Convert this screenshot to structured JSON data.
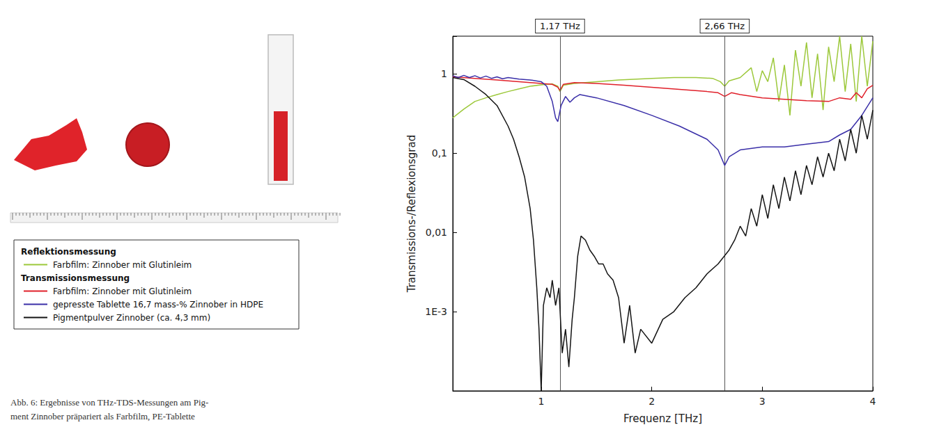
{
  "chart_data": {
    "type": "line",
    "x_label": "Frequenz [THz]",
    "y_label": "Transmissions-/Reflexionsgrad",
    "log": "y",
    "grid": false,
    "legend": "left",
    "xlim": [
      0.2,
      4
    ],
    "xticks": [
      1,
      2,
      3,
      4
    ],
    "ylim": [
      0.0001,
      3
    ],
    "yticks": [
      {
        "value": 0.001,
        "label": "1E-3"
      },
      {
        "value": 0.01,
        "label": "0,01"
      },
      {
        "value": 0.1,
        "label": "0,1"
      },
      1
    ],
    "annotations": [
      {
        "x": 1.17,
        "label": "1,17 THz"
      },
      {
        "x": 2.66,
        "label": "2,66 THz"
      }
    ],
    "series": [
      {
        "name": "Farbfilm: Zinnober mit Glutinleim",
        "group": "Reflektionsmessung",
        "color": "#9cc83a",
        "x": [
          0.2,
          0.3,
          0.4,
          0.5,
          0.6,
          0.7,
          0.8,
          0.9,
          1.0,
          1.1,
          1.15,
          1.17,
          1.2,
          1.3,
          1.5,
          1.7,
          2.0,
          2.2,
          2.4,
          2.55,
          2.62,
          2.66,
          2.7,
          2.8,
          2.9,
          2.95,
          3.0,
          3.05,
          3.1,
          3.15,
          3.2,
          3.25,
          3.3,
          3.35,
          3.4,
          3.45,
          3.5,
          3.55,
          3.6,
          3.65,
          3.7,
          3.75,
          3.8,
          3.85,
          3.9,
          3.95,
          4.0
        ],
        "values": [
          0.28,
          0.36,
          0.45,
          0.5,
          0.55,
          0.6,
          0.65,
          0.7,
          0.73,
          0.75,
          0.7,
          0.6,
          0.72,
          0.76,
          0.8,
          0.84,
          0.88,
          0.9,
          0.9,
          0.88,
          0.8,
          0.7,
          0.82,
          0.9,
          1.2,
          0.6,
          1.1,
          0.8,
          1.6,
          0.45,
          1.3,
          0.3,
          2.0,
          0.7,
          2.5,
          0.5,
          1.8,
          0.35,
          2.2,
          0.8,
          3.0,
          0.6,
          2.4,
          0.45,
          3.0,
          0.7,
          2.6
        ]
      },
      {
        "name": "Farbfilm: Zinnober mit Glutinleim",
        "group": "Transmissionsmessung",
        "color": "#e0202a",
        "x": [
          0.2,
          0.4,
          0.6,
          0.8,
          1.0,
          1.1,
          1.15,
          1.17,
          1.2,
          1.3,
          1.5,
          1.75,
          2.0,
          2.25,
          2.5,
          2.6,
          2.66,
          2.72,
          2.8,
          3.0,
          3.2,
          3.4,
          3.6,
          3.7,
          3.8,
          3.85,
          3.9,
          3.95,
          4.0
        ],
        "values": [
          0.92,
          0.88,
          0.84,
          0.8,
          0.76,
          0.74,
          0.68,
          0.62,
          0.74,
          0.78,
          0.76,
          0.72,
          0.68,
          0.64,
          0.6,
          0.58,
          0.52,
          0.58,
          0.55,
          0.5,
          0.48,
          0.46,
          0.45,
          0.5,
          0.48,
          0.58,
          0.5,
          0.65,
          0.72
        ]
      },
      {
        "name": "gepresste Tablette 16,7 mass-% Zinnober in HDPE",
        "group": "Transmissionsmessung",
        "color": "#3a2fa8",
        "x": [
          0.2,
          0.25,
          0.3,
          0.35,
          0.4,
          0.45,
          0.5,
          0.55,
          0.6,
          0.65,
          0.7,
          0.8,
          0.9,
          1.0,
          1.05,
          1.1,
          1.13,
          1.15,
          1.18,
          1.22,
          1.26,
          1.3,
          1.35,
          1.5,
          1.75,
          2.0,
          2.25,
          2.5,
          2.6,
          2.66,
          2.7,
          2.8,
          3.0,
          3.2,
          3.4,
          3.6,
          3.7,
          3.8,
          3.9,
          4.0
        ],
        "values": [
          0.95,
          0.9,
          0.96,
          0.9,
          0.95,
          0.89,
          0.94,
          0.88,
          0.92,
          0.87,
          0.9,
          0.86,
          0.84,
          0.8,
          0.7,
          0.45,
          0.28,
          0.25,
          0.4,
          0.52,
          0.44,
          0.5,
          0.55,
          0.5,
          0.4,
          0.3,
          0.22,
          0.15,
          0.11,
          0.07,
          0.09,
          0.11,
          0.12,
          0.12,
          0.13,
          0.14,
          0.17,
          0.2,
          0.3,
          0.5
        ]
      },
      {
        "name": "Pigmentpulver Zinnober (ca. 4,3 mm)",
        "group": "Transmissionsmessung",
        "color": "#141414",
        "x": [
          0.2,
          0.3,
          0.4,
          0.5,
          0.6,
          0.7,
          0.75,
          0.8,
          0.85,
          0.9,
          0.93,
          0.96,
          0.98,
          1.0,
          1.02,
          1.05,
          1.08,
          1.1,
          1.13,
          1.16,
          1.19,
          1.22,
          1.25,
          1.28,
          1.3,
          1.33,
          1.36,
          1.4,
          1.44,
          1.48,
          1.52,
          1.56,
          1.6,
          1.65,
          1.7,
          1.75,
          1.8,
          1.85,
          1.9,
          2.0,
          2.1,
          2.2,
          2.3,
          2.4,
          2.5,
          2.6,
          2.7,
          2.75,
          2.8,
          2.85,
          2.9,
          2.95,
          3.0,
          3.05,
          3.1,
          3.15,
          3.2,
          3.25,
          3.3,
          3.35,
          3.4,
          3.45,
          3.5,
          3.55,
          3.6,
          3.65,
          3.7,
          3.75,
          3.8,
          3.85,
          3.9,
          3.95,
          4.0
        ],
        "values": [
          0.9,
          0.85,
          0.7,
          0.55,
          0.4,
          0.22,
          0.15,
          0.09,
          0.05,
          0.02,
          0.008,
          0.002,
          0.0006,
          0.0001,
          0.0012,
          0.002,
          0.0015,
          0.0025,
          0.0012,
          0.002,
          0.0003,
          0.0006,
          0.0002,
          0.0008,
          0.0015,
          0.005,
          0.009,
          0.008,
          0.006,
          0.005,
          0.004,
          0.004,
          0.003,
          0.0025,
          0.0015,
          0.0004,
          0.0012,
          0.0003,
          0.0006,
          0.0004,
          0.0008,
          0.001,
          0.0015,
          0.002,
          0.003,
          0.004,
          0.006,
          0.008,
          0.012,
          0.009,
          0.02,
          0.012,
          0.03,
          0.015,
          0.04,
          0.02,
          0.05,
          0.025,
          0.06,
          0.03,
          0.07,
          0.04,
          0.09,
          0.05,
          0.1,
          0.06,
          0.15,
          0.08,
          0.2,
          0.1,
          0.3,
          0.15,
          0.35
        ]
      }
    ]
  },
  "caption": {
    "lines": [
      "Abb. 6: Ergebnisse von THz-TDS-Messungen am Pig-",
      "ment Zinnober präpariert als Farbfilm, PE-Tablette"
    ]
  }
}
